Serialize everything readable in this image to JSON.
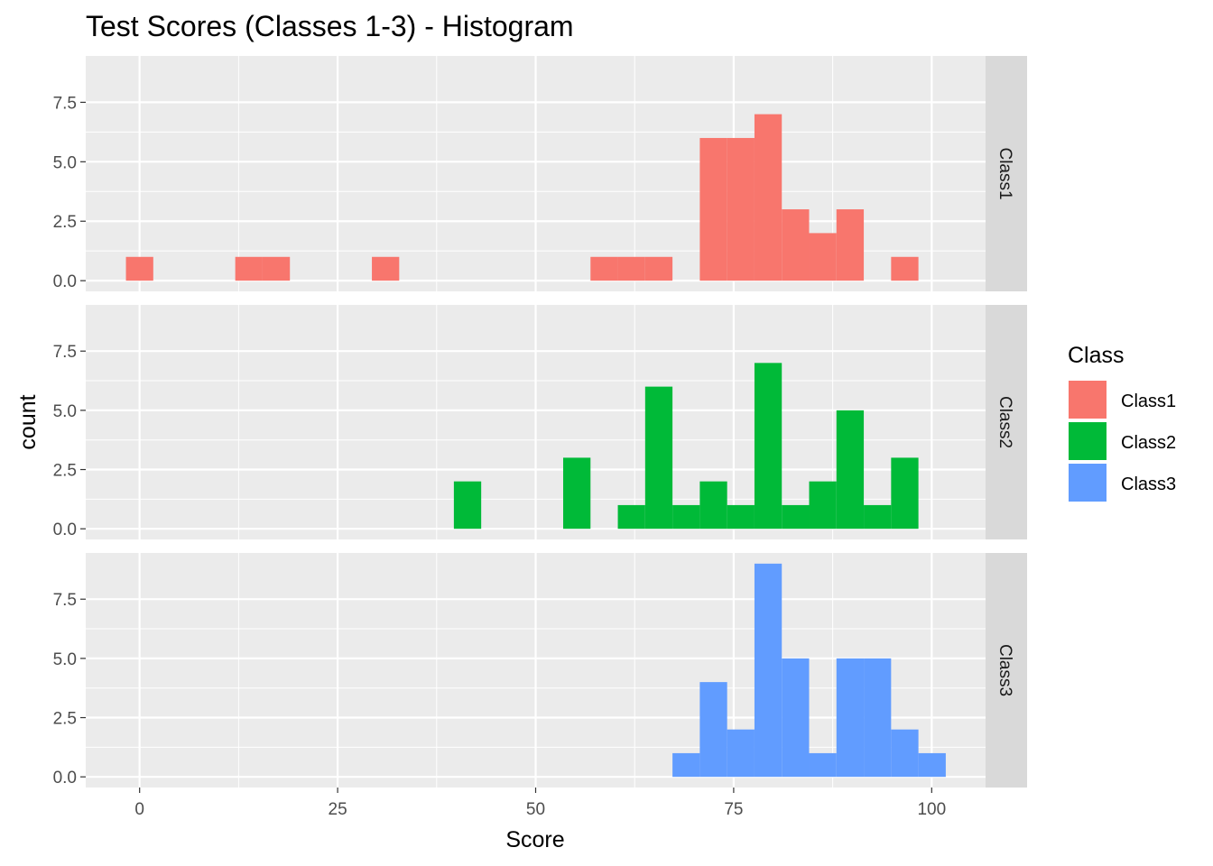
{
  "chart_data": {
    "type": "bar",
    "title": "Test Scores (Classes 1-3) - Histogram",
    "xlabel": "Score",
    "ylabel": "count",
    "xlim": [
      -6.8,
      106.8
    ],
    "ylim": [
      -0.45,
      9.45
    ],
    "x_ticks": [
      0,
      25,
      50,
      75,
      100
    ],
    "x_tick_labels": [
      "0",
      "25",
      "50",
      "75",
      "100"
    ],
    "y_ticks": [
      0,
      2.5,
      5,
      7.5
    ],
    "y_tick_labels": [
      "0.0",
      "2.5",
      "5.0",
      "7.5"
    ],
    "bin_width": 3.45,
    "bin_start": -1.72,
    "grid": true,
    "legend": {
      "title": "Class",
      "position": "right",
      "entries": [
        {
          "label": "Class1",
          "color": "#F8766D"
        },
        {
          "label": "Class2",
          "color": "#00BA38"
        },
        {
          "label": "Class3",
          "color": "#619CFF"
        }
      ]
    },
    "series": [
      {
        "name": "Class1",
        "color": "#F8766D",
        "bins": [
          {
            "x": 0,
            "count": 1
          },
          {
            "x": 13.8,
            "count": 1
          },
          {
            "x": 17.25,
            "count": 1
          },
          {
            "x": 31.05,
            "count": 1
          },
          {
            "x": 58.65,
            "count": 1
          },
          {
            "x": 62.1,
            "count": 1
          },
          {
            "x": 65.55,
            "count": 1
          },
          {
            "x": 72.45,
            "count": 6
          },
          {
            "x": 75.9,
            "count": 6
          },
          {
            "x": 79.35,
            "count": 7
          },
          {
            "x": 82.8,
            "count": 3
          },
          {
            "x": 86.25,
            "count": 2
          },
          {
            "x": 89.7,
            "count": 3
          },
          {
            "x": 96.6,
            "count": 1
          }
        ]
      },
      {
        "name": "Class2",
        "color": "#00BA38",
        "bins": [
          {
            "x": 41.4,
            "count": 2
          },
          {
            "x": 55.2,
            "count": 3
          },
          {
            "x": 62.1,
            "count": 1
          },
          {
            "x": 65.55,
            "count": 6
          },
          {
            "x": 69.0,
            "count": 1
          },
          {
            "x": 72.45,
            "count": 2
          },
          {
            "x": 75.9,
            "count": 1
          },
          {
            "x": 79.35,
            "count": 7
          },
          {
            "x": 82.8,
            "count": 1
          },
          {
            "x": 86.25,
            "count": 2
          },
          {
            "x": 89.7,
            "count": 5
          },
          {
            "x": 93.15,
            "count": 1
          },
          {
            "x": 96.6,
            "count": 3
          }
        ]
      },
      {
        "name": "Class3",
        "color": "#619CFF",
        "bins": [
          {
            "x": 69.0,
            "count": 1
          },
          {
            "x": 72.45,
            "count": 4
          },
          {
            "x": 75.9,
            "count": 2
          },
          {
            "x": 79.35,
            "count": 9
          },
          {
            "x": 82.8,
            "count": 5
          },
          {
            "x": 86.25,
            "count": 1
          },
          {
            "x": 89.7,
            "count": 5
          },
          {
            "x": 93.15,
            "count": 5
          },
          {
            "x": 96.6,
            "count": 2
          },
          {
            "x": 100.05,
            "count": 1
          }
        ]
      }
    ]
  }
}
